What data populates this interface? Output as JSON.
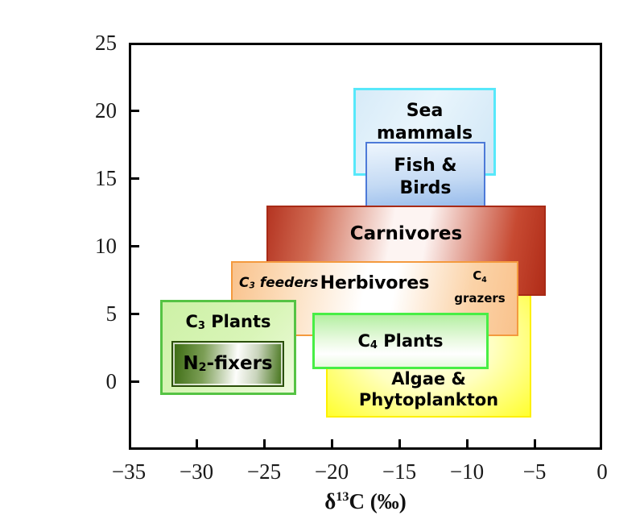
{
  "chart_data": {
    "type": "area",
    "title": "",
    "xlabel": "δ13C (‰)",
    "xlabel_parts": {
      "delta": "δ",
      "sup": "13",
      "rest": "C (‰)"
    },
    "ylabel": "",
    "xlim": [
      -35,
      0
    ],
    "ylim": [
      -5,
      25
    ],
    "grid": "off",
    "legend": "none",
    "xtick_labels": [
      "−35",
      "−30",
      "−25",
      "−20",
      "−15",
      "−10",
      "−5",
      "0"
    ],
    "ytick_labels": [
      "25",
      "20",
      "15",
      "10",
      "5",
      "0"
    ],
    "axis_color": "#000000",
    "boxes": {
      "sea_mammals": {
        "line1": "Sea",
        "line2": "mammals",
        "x": [
          -18.4,
          -7.9
        ],
        "y": [
          15.2,
          21.7
        ],
        "fill": "#d7ebf8",
        "border": "#57e8fa"
      },
      "fish_birds": {
        "line1": "Fish &",
        "line2": "Birds",
        "x": [
          -17.5,
          -8.6
        ],
        "y": [
          13.0,
          17.7
        ],
        "fill": "#9fc2ee",
        "border": "#4d7ad8"
      },
      "carnivores": {
        "label": "Carnivores",
        "x": [
          -24.8,
          -4.2
        ],
        "y": [
          6.3,
          13.0
        ],
        "fill": "#b53522",
        "fill_center": "#fdf4f2",
        "border": "#a82a16"
      },
      "herbivores": {
        "label": "Herbivores",
        "left_tag": {
          "pre": "C",
          "sub": "3",
          "post": " feeders"
        },
        "right_tag_line1_pre": "C",
        "right_tag_line1_sub": "4",
        "right_tag_line2": "grazers",
        "x": [
          -27.4,
          -6.2
        ],
        "y": [
          3.3,
          8.9
        ],
        "fill": "#f9c28c",
        "fill_center": "#ffffff",
        "border": "#f49a3e"
      },
      "c3_plants": {
        "pre": "C",
        "sub": "3",
        "post": " Plants",
        "x": [
          -32.7,
          -22.6
        ],
        "y": [
          -1.0,
          6.0
        ],
        "fill": "#cdf1a6",
        "border": "#55c344"
      },
      "n2_fixers": {
        "pre": "N",
        "sub": "2",
        "post": "-fixers",
        "x": [
          -31.8,
          -23.8
        ],
        "y": [
          -0.4,
          3.0
        ],
        "fill": "#3a6a10",
        "fill_center": "#fdfdfb",
        "border": "#2a4f08"
      },
      "c4_plants": {
        "pre": "C",
        "sub": "4",
        "post": " Plants",
        "x": [
          -21.4,
          -8.4
        ],
        "y": [
          0.9,
          5.1
        ],
        "fill": "#b4efa2",
        "border": "#47ee45"
      },
      "algae": {
        "line1": "Algae &",
        "line2": "Phytoplankton",
        "x": [
          -20.8,
          -5.2
        ],
        "y": [
          -2.7,
          6.3
        ],
        "fill": "#ffff2e",
        "fill_center": "#ffffe9",
        "border": "#fdf000"
      }
    }
  }
}
